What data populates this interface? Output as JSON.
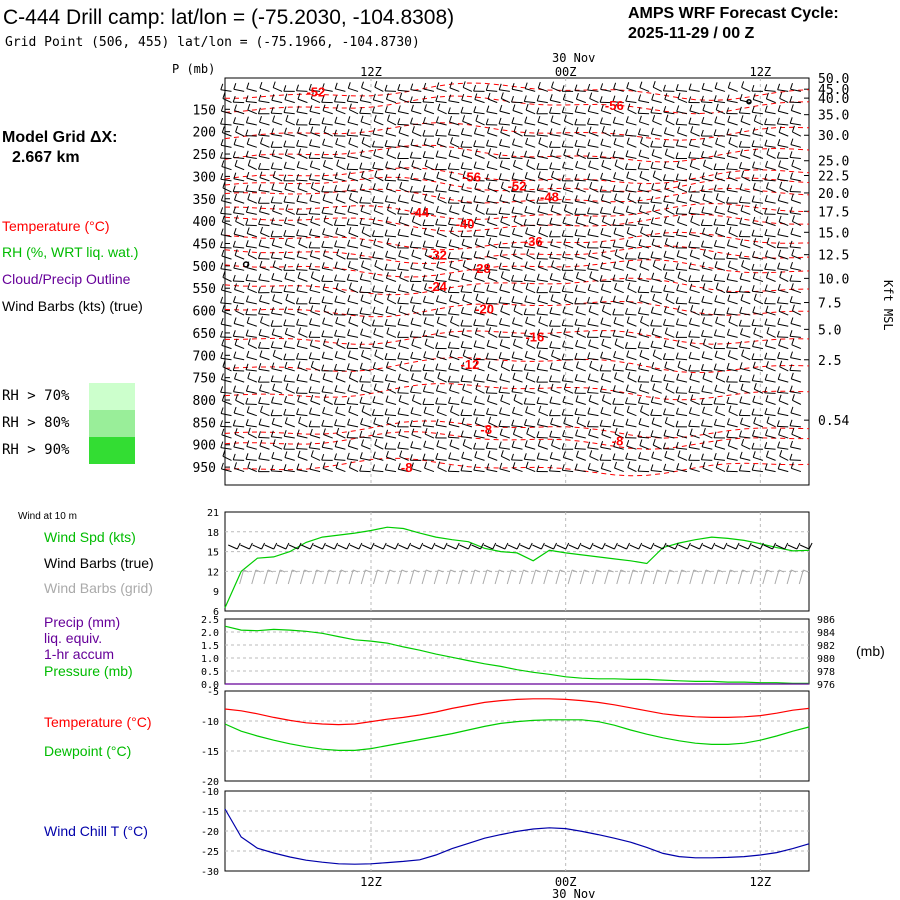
{
  "header": {
    "title": "C-444 Drill camp:  lat/lon = (-75.2030, -104.8308)",
    "grid_point": "Grid Point (506, 455) lat/lon = (-75.1966, -104.8730)",
    "forecast_label": "AMPS WRF Forecast Cycle:",
    "forecast_cycle": "2025-11-29 / 00  Z"
  },
  "model_grid": {
    "label": "Model Grid ΔX:",
    "value": "2.667 km"
  },
  "time_axis": {
    "date_label": "30 Nov",
    "ticks": [
      "12Z",
      "00Z",
      "12Z"
    ],
    "tick_hours": [
      12,
      24,
      36
    ],
    "range_hours": [
      3,
      39
    ]
  },
  "legend_top": {
    "temperature": "Temperature (°C)",
    "rh": "RH (%, WRT liq. wat.)",
    "cloud": "Cloud/Precip Outline",
    "wind": "Wind Barbs (kts) (true)",
    "rh_levels": [
      {
        "label": "RH > 70%",
        "color": "#ccffcc"
      },
      {
        "label": "RH > 80%",
        "color": "#99ee99"
      },
      {
        "label": "RH > 90%",
        "color": "#33dd33"
      }
    ]
  },
  "colors": {
    "temperature": "#ff0000",
    "green": "#00cc00",
    "cloud": "#660099",
    "blue": "#0000aa",
    "grid_barbs": "#aaaaaa"
  },
  "chart_data": [
    {
      "type": "line",
      "title": "",
      "xlabel": "",
      "ylabel": "P (mb)",
      "right_label": "Kft MSL",
      "pressure_ticks": [
        150,
        200,
        250,
        300,
        350,
        400,
        450,
        500,
        550,
        600,
        650,
        700,
        750,
        800,
        850,
        900,
        950
      ],
      "kft_ticks": [
        "50.0",
        "45.0",
        "40.0",
        "35.0",
        "30.0",
        "25.0",
        "22.5",
        "20.0",
        "17.5",
        "15.0",
        "12.5",
        "10.0",
        "7.5",
        "5.0",
        "2.5",
        "0.54"
      ],
      "kft_pressures": [
        80,
        105,
        125,
        162,
        208,
        265,
        298,
        337,
        378,
        425,
        475,
        528,
        582,
        642,
        710,
        845
      ],
      "ylim": [
        80,
        990
      ],
      "temperature_labels": [
        {
          "value": "-52",
          "hour": 8.6,
          "p": 110
        },
        {
          "value": "-56",
          "hour": 27.0,
          "p": 140
        },
        {
          "value": "-56",
          "hour": 18.2,
          "p": 300
        },
        {
          "value": "-52",
          "hour": 21.0,
          "p": 320
        },
        {
          "value": "-48",
          "hour": 23.0,
          "p": 345
        },
        {
          "value": "-44",
          "hour": 15.0,
          "p": 380
        },
        {
          "value": "-40",
          "hour": 17.8,
          "p": 405
        },
        {
          "value": "-36",
          "hour": 22.0,
          "p": 445
        },
        {
          "value": "-32",
          "hour": 16.1,
          "p": 475
        },
        {
          "value": "-28",
          "hour": 18.8,
          "p": 505
        },
        {
          "value": "-24",
          "hour": 16.1,
          "p": 545
        },
        {
          "value": "-20",
          "hour": 19.0,
          "p": 595
        },
        {
          "value": "-16",
          "hour": 22.1,
          "p": 658
        },
        {
          "value": "-12",
          "hour": 18.1,
          "p": 720
        },
        {
          "value": "-8",
          "hour": 19.1,
          "p": 865
        },
        {
          "value": "-8",
          "hour": 27.2,
          "p": 890
        },
        {
          "value": "-8",
          "hour": 14.2,
          "p": 950
        }
      ]
    },
    {
      "type": "line",
      "title": "Wind at 10 m",
      "ylim": [
        6,
        21
      ],
      "yticks": [
        6,
        9,
        12,
        15,
        18,
        21
      ],
      "series": [
        {
          "name": "Wind Spd (kts)",
          "values": [
            6.5,
            12,
            14,
            14.2,
            15,
            16.4,
            17.2,
            17.5,
            17.8,
            18.2,
            18.7,
            18.5,
            17.8,
            17.2,
            16.8,
            16.5,
            15.5,
            15,
            14.8,
            13.6,
            15.2,
            14.8,
            14.5,
            14.2,
            13.9,
            13.6,
            13.2,
            15.6,
            16.3,
            16.8,
            17.2,
            17,
            16.7,
            16.2,
            15.6,
            15.1,
            15.2
          ]
        }
      ],
      "x_hours": [
        3,
        4,
        5,
        6,
        7,
        8,
        9,
        10,
        11,
        12,
        13,
        14,
        15,
        16,
        17,
        18,
        19,
        20,
        21,
        22,
        23,
        24,
        25,
        26,
        27,
        28,
        29,
        30,
        31,
        32,
        33,
        34,
        35,
        36,
        37,
        38,
        39
      ],
      "legend": [
        "Wind Spd (kts)",
        "Wind Barbs (true)",
        "Wind Barbs (grid)"
      ]
    },
    {
      "type": "line",
      "ylim_left": [
        0.0,
        2.5
      ],
      "left_ticks": [
        "0.0",
        "0.5",
        "1.0",
        "1.5",
        "2.0",
        "2.5"
      ],
      "ylim_right": [
        976,
        986
      ],
      "right_ticks": [
        "976",
        "978",
        "980",
        "982",
        "984",
        "986"
      ],
      "right_unit": "(mb)",
      "x_hours": [
        3,
        4,
        5,
        6,
        7,
        8,
        9,
        10,
        11,
        12,
        13,
        14,
        15,
        16,
        17,
        18,
        19,
        20,
        21,
        22,
        23,
        24,
        25,
        26,
        27,
        28,
        29,
        30,
        31,
        32,
        33,
        34,
        35,
        36,
        37,
        38,
        39
      ],
      "series": [
        {
          "name": "Pressure (mb)",
          "axis": "right",
          "values": [
            984.9,
            984.3,
            984.2,
            984.4,
            984.3,
            984.1,
            983.8,
            983.3,
            982.8,
            982.6,
            982.3,
            981.7,
            981.2,
            980.6,
            980.1,
            979.6,
            979.1,
            978.7,
            978.2,
            977.8,
            977.5,
            977.1,
            976.9,
            976.8,
            976.8,
            976.7,
            976.7,
            976.6,
            976.5,
            976.4,
            976.4,
            976.3,
            976.3,
            976.2,
            976.2,
            976.1,
            976.1
          ]
        },
        {
          "name": "Precip (mm)",
          "axis": "left",
          "values": [
            0,
            0,
            0,
            0,
            0,
            0,
            0,
            0,
            0,
            0,
            0,
            0,
            0,
            0,
            0,
            0,
            0,
            0,
            0,
            0,
            0,
            0,
            0,
            0,
            0,
            0,
            0,
            0,
            0,
            0,
            0,
            0,
            0,
            0,
            0,
            0,
            0
          ]
        }
      ],
      "legend": [
        "Precip (mm)",
        "liq. equiv.",
        "1-hr accum",
        "Pressure (mb)"
      ]
    },
    {
      "type": "line",
      "ylim": [
        -20,
        -5
      ],
      "yticks": [
        "-20",
        "-15",
        "-10",
        "-5"
      ],
      "x_hours": [
        3,
        4,
        5,
        6,
        7,
        8,
        9,
        10,
        11,
        12,
        13,
        14,
        15,
        16,
        17,
        18,
        19,
        20,
        21,
        22,
        23,
        24,
        25,
        26,
        27,
        28,
        29,
        30,
        31,
        32,
        33,
        34,
        35,
        36,
        37,
        38,
        39
      ],
      "series": [
        {
          "name": "Temperature (°C)",
          "values": [
            -8,
            -8.3,
            -8.8,
            -9.4,
            -9.9,
            -10.3,
            -10.5,
            -10.6,
            -10.5,
            -10.1,
            -9.7,
            -9.4,
            -9,
            -8.5,
            -7.9,
            -7.4,
            -6.9,
            -6.6,
            -6.4,
            -6.3,
            -6.3,
            -6.4,
            -6.6,
            -6.9,
            -7.3,
            -7.8,
            -8.3,
            -8.8,
            -9.1,
            -9.3,
            -9.4,
            -9.4,
            -9.3,
            -9.1,
            -8.7,
            -8.2,
            -7.9
          ]
        },
        {
          "name": "Dewpoint (°C)",
          "values": [
            -10.5,
            -11.7,
            -12.5,
            -13.2,
            -13.8,
            -14.3,
            -14.7,
            -14.9,
            -14.9,
            -14.6,
            -14.1,
            -13.6,
            -13.1,
            -12.6,
            -12.1,
            -11.5,
            -10.9,
            -10.4,
            -10.1,
            -9.9,
            -9.8,
            -9.8,
            -9.8,
            -10.1,
            -10.7,
            -11.5,
            -12.2,
            -12.8,
            -13.3,
            -13.7,
            -13.9,
            -13.9,
            -13.7,
            -13.2,
            -12.5,
            -11.7,
            -11
          ]
        }
      ],
      "legend": [
        "Temperature (°C)",
        "Dewpoint (°C)"
      ]
    },
    {
      "type": "line",
      "ylim": [
        -30,
        -10
      ],
      "yticks": [
        "-30",
        "-25",
        "-20",
        "-15",
        "-10"
      ],
      "x_hours": [
        3,
        4,
        5,
        6,
        7,
        8,
        9,
        10,
        11,
        12,
        13,
        14,
        15,
        16,
        17,
        18,
        19,
        20,
        21,
        22,
        23,
        24,
        25,
        26,
        27,
        28,
        29,
        30,
        31,
        32,
        33,
        34,
        35,
        36,
        37,
        38,
        39
      ],
      "series": [
        {
          "name": "Wind Chill T (°C)",
          "values": [
            -14.5,
            -21.5,
            -24.3,
            -25.5,
            -26.5,
            -27.3,
            -27.8,
            -28.2,
            -28.3,
            -28.2,
            -27.9,
            -27.6,
            -27.2,
            -26,
            -24.4,
            -23.1,
            -21.8,
            -20.9,
            -20.1,
            -19.5,
            -19.2,
            -19.4,
            -20.1,
            -20.9,
            -21.8,
            -22.8,
            -24.1,
            -25.6,
            -26.4,
            -26.7,
            -26.7,
            -26.6,
            -26.4,
            -26,
            -25.4,
            -24.4,
            -23.2
          ]
        }
      ],
      "legend": [
        "Wind Chill T (°C)"
      ]
    }
  ]
}
